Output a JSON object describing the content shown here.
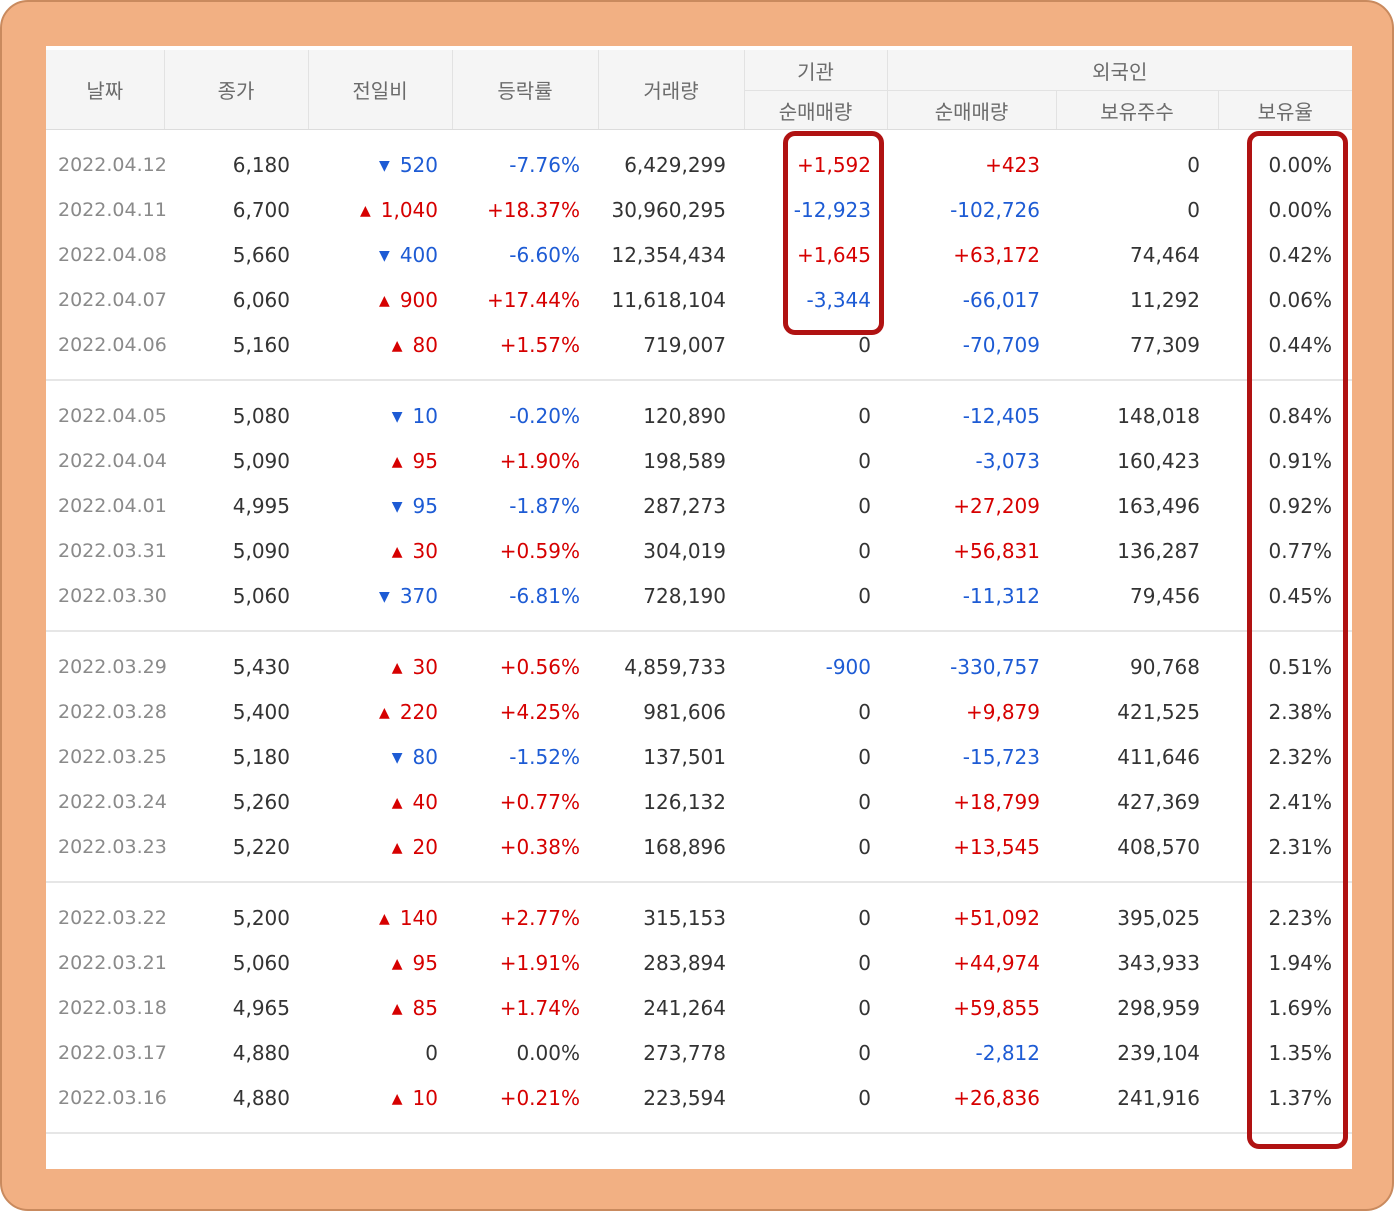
{
  "headers": {
    "date": "날짜",
    "close": "종가",
    "change": "전일비",
    "rate": "등락률",
    "volume": "거래량",
    "institution_group": "기관",
    "foreign_group": "외국인",
    "inst_net": "순매매량",
    "foreign_net": "순매매량",
    "foreign_holdings": "보유주수",
    "foreign_ratio": "보유율"
  },
  "colors": {
    "up": "#d60000",
    "down": "#1d5bd4",
    "highlight_border": "#b01212",
    "frame": "#f2b083"
  },
  "icons": {
    "up": "triangle-up-icon",
    "down": "triangle-down-icon"
  },
  "rows": [
    {
      "date": "2022.04.12",
      "close": "6,180",
      "dir": "down",
      "change": "520",
      "rate": "-7.76%",
      "volume": "6,429,299",
      "inst": "+1,592",
      "foreign": "+423",
      "holdings": "0",
      "ratio": "0.00%"
    },
    {
      "date": "2022.04.11",
      "close": "6,700",
      "dir": "up",
      "change": "1,040",
      "rate": "+18.37%",
      "volume": "30,960,295",
      "inst": "-12,923",
      "foreign": "-102,726",
      "holdings": "0",
      "ratio": "0.00%"
    },
    {
      "date": "2022.04.08",
      "close": "5,660",
      "dir": "down",
      "change": "400",
      "rate": "-6.60%",
      "volume": "12,354,434",
      "inst": "+1,645",
      "foreign": "+63,172",
      "holdings": "74,464",
      "ratio": "0.42%"
    },
    {
      "date": "2022.04.07",
      "close": "6,060",
      "dir": "up",
      "change": "900",
      "rate": "+17.44%",
      "volume": "11,618,104",
      "inst": "-3,344",
      "foreign": "-66,017",
      "holdings": "11,292",
      "ratio": "0.06%"
    },
    {
      "date": "2022.04.06",
      "close": "5,160",
      "dir": "up",
      "change": "80",
      "rate": "+1.57%",
      "volume": "719,007",
      "inst": "0",
      "foreign": "-70,709",
      "holdings": "77,309",
      "ratio": "0.44%"
    },
    {
      "date": "2022.04.05",
      "close": "5,080",
      "dir": "down",
      "change": "10",
      "rate": "-0.20%",
      "volume": "120,890",
      "inst": "0",
      "foreign": "-12,405",
      "holdings": "148,018",
      "ratio": "0.84%"
    },
    {
      "date": "2022.04.04",
      "close": "5,090",
      "dir": "up",
      "change": "95",
      "rate": "+1.90%",
      "volume": "198,589",
      "inst": "0",
      "foreign": "-3,073",
      "holdings": "160,423",
      "ratio": "0.91%"
    },
    {
      "date": "2022.04.01",
      "close": "4,995",
      "dir": "down",
      "change": "95",
      "rate": "-1.87%",
      "volume": "287,273",
      "inst": "0",
      "foreign": "+27,209",
      "holdings": "163,496",
      "ratio": "0.92%"
    },
    {
      "date": "2022.03.31",
      "close": "5,090",
      "dir": "up",
      "change": "30",
      "rate": "+0.59%",
      "volume": "304,019",
      "inst": "0",
      "foreign": "+56,831",
      "holdings": "136,287",
      "ratio": "0.77%"
    },
    {
      "date": "2022.03.30",
      "close": "5,060",
      "dir": "down",
      "change": "370",
      "rate": "-6.81%",
      "volume": "728,190",
      "inst": "0",
      "foreign": "-11,312",
      "holdings": "79,456",
      "ratio": "0.45%"
    },
    {
      "date": "2022.03.29",
      "close": "5,430",
      "dir": "up",
      "change": "30",
      "rate": "+0.56%",
      "volume": "4,859,733",
      "inst": "-900",
      "foreign": "-330,757",
      "holdings": "90,768",
      "ratio": "0.51%"
    },
    {
      "date": "2022.03.28",
      "close": "5,400",
      "dir": "up",
      "change": "220",
      "rate": "+4.25%",
      "volume": "981,606",
      "inst": "0",
      "foreign": "+9,879",
      "holdings": "421,525",
      "ratio": "2.38%"
    },
    {
      "date": "2022.03.25",
      "close": "5,180",
      "dir": "down",
      "change": "80",
      "rate": "-1.52%",
      "volume": "137,501",
      "inst": "0",
      "foreign": "-15,723",
      "holdings": "411,646",
      "ratio": "2.32%"
    },
    {
      "date": "2022.03.24",
      "close": "5,260",
      "dir": "up",
      "change": "40",
      "rate": "+0.77%",
      "volume": "126,132",
      "inst": "0",
      "foreign": "+18,799",
      "holdings": "427,369",
      "ratio": "2.41%"
    },
    {
      "date": "2022.03.23",
      "close": "5,220",
      "dir": "up",
      "change": "20",
      "rate": "+0.38%",
      "volume": "168,896",
      "inst": "0",
      "foreign": "+13,545",
      "holdings": "408,570",
      "ratio": "2.31%"
    },
    {
      "date": "2022.03.22",
      "close": "5,200",
      "dir": "up",
      "change": "140",
      "rate": "+2.77%",
      "volume": "315,153",
      "inst": "0",
      "foreign": "+51,092",
      "holdings": "395,025",
      "ratio": "2.23%"
    },
    {
      "date": "2022.03.21",
      "close": "5,060",
      "dir": "up",
      "change": "95",
      "rate": "+1.91%",
      "volume": "283,894",
      "inst": "0",
      "foreign": "+44,974",
      "holdings": "343,933",
      "ratio": "1.94%"
    },
    {
      "date": "2022.03.18",
      "close": "4,965",
      "dir": "up",
      "change": "85",
      "rate": "+1.74%",
      "volume": "241,264",
      "inst": "0",
      "foreign": "+59,855",
      "holdings": "298,959",
      "ratio": "1.69%"
    },
    {
      "date": "2022.03.17",
      "close": "4,880",
      "dir": "flat",
      "change": "0",
      "rate": "0.00%",
      "volume": "273,778",
      "inst": "0",
      "foreign": "-2,812",
      "holdings": "239,104",
      "ratio": "1.35%"
    },
    {
      "date": "2022.03.16",
      "close": "4,880",
      "dir": "up",
      "change": "10",
      "rate": "+0.21%",
      "volume": "223,594",
      "inst": "0",
      "foreign": "+26,836",
      "holdings": "241,916",
      "ratio": "1.37%"
    }
  ]
}
